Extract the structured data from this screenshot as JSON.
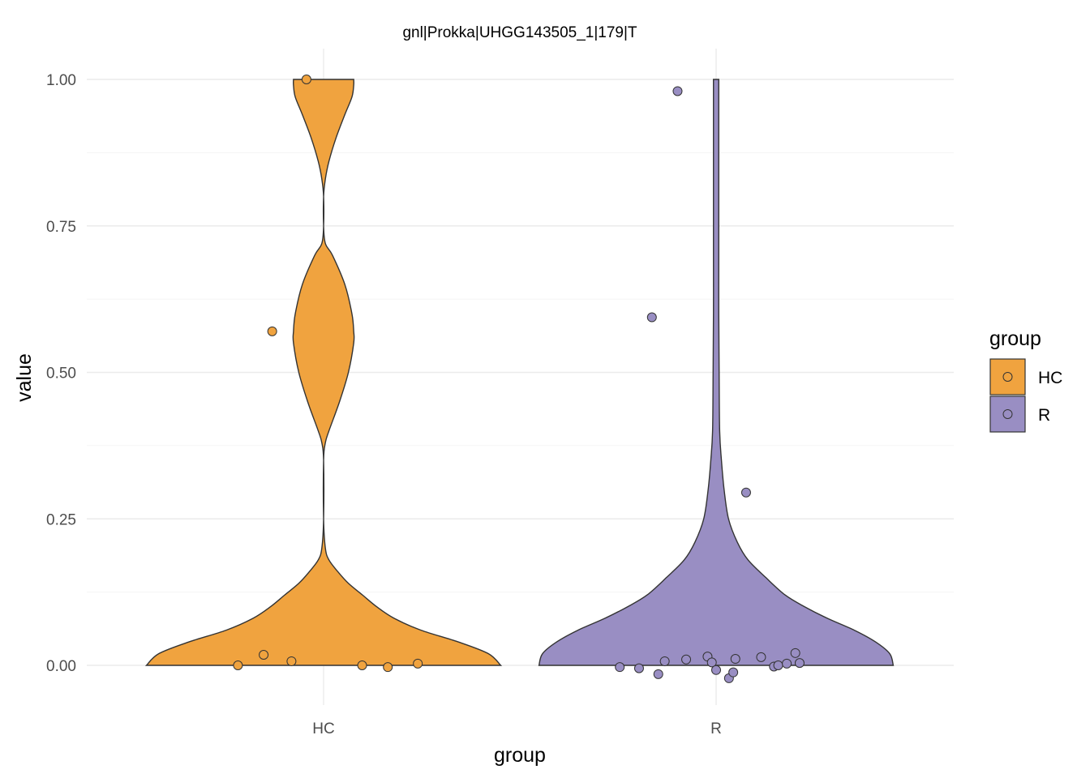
{
  "chart_data": {
    "type": "violin",
    "title": "gnl|Prokka|UHGG143505_1|179|T",
    "xlabel": "group",
    "ylabel": "value",
    "categories": [
      "HC",
      "R"
    ],
    "ylim": [
      -0.07,
      1.05
    ],
    "yticks": [
      0.0,
      0.25,
      0.5,
      0.75,
      1.0
    ],
    "ytick_labels": [
      "0.00",
      "0.25",
      "0.50",
      "0.75",
      "1.00"
    ],
    "grid": true,
    "legend": {
      "title": "group",
      "placement": "right",
      "entries": [
        {
          "label": "HC",
          "color": "#F0A33F"
        },
        {
          "label": "R",
          "color": "#998EC3"
        }
      ]
    },
    "series": [
      {
        "name": "HC",
        "color": "#F0A33F",
        "violin_halfwidth": [
          [
            0.0,
            1.0
          ],
          [
            0.02,
            0.93
          ],
          [
            0.04,
            0.76
          ],
          [
            0.06,
            0.55
          ],
          [
            0.08,
            0.4
          ],
          [
            0.1,
            0.3
          ],
          [
            0.12,
            0.22
          ],
          [
            0.14,
            0.14
          ],
          [
            0.16,
            0.08
          ],
          [
            0.18,
            0.03
          ],
          [
            0.2,
            0.01
          ],
          [
            0.25,
            0.0
          ],
          [
            0.35,
            0.0
          ],
          [
            0.38,
            0.01
          ],
          [
            0.4,
            0.03
          ],
          [
            0.45,
            0.09
          ],
          [
            0.5,
            0.14
          ],
          [
            0.55,
            0.17
          ],
          [
            0.57,
            0.17
          ],
          [
            0.6,
            0.16
          ],
          [
            0.65,
            0.12
          ],
          [
            0.7,
            0.05
          ],
          [
            0.72,
            0.01
          ],
          [
            0.75,
            0.0
          ],
          [
            0.8,
            0.0
          ],
          [
            0.83,
            0.01
          ],
          [
            0.86,
            0.03
          ],
          [
            0.9,
            0.07
          ],
          [
            0.94,
            0.12
          ],
          [
            0.97,
            0.16
          ],
          [
            0.99,
            0.17
          ],
          [
            1.0,
            0.17
          ]
        ],
        "points": [
          {
            "x": -0.4,
            "y": 0.0
          },
          {
            "x": -0.28,
            "y": 0.018
          },
          {
            "x": -0.15,
            "y": 0.007
          },
          {
            "x": 0.18,
            "y": 0.0
          },
          {
            "x": 0.3,
            "y": -0.003
          },
          {
            "x": 0.44,
            "y": 0.003
          },
          {
            "x": -0.24,
            "y": 0.57
          },
          {
            "x": -0.08,
            "y": 1.0
          }
        ]
      },
      {
        "name": "R",
        "color": "#998EC3",
        "violin_halfwidth": [
          [
            0.0,
            1.0
          ],
          [
            0.02,
            0.98
          ],
          [
            0.04,
            0.9
          ],
          [
            0.06,
            0.78
          ],
          [
            0.08,
            0.63
          ],
          [
            0.1,
            0.5
          ],
          [
            0.12,
            0.39
          ],
          [
            0.15,
            0.28
          ],
          [
            0.18,
            0.18
          ],
          [
            0.21,
            0.12
          ],
          [
            0.25,
            0.07
          ],
          [
            0.3,
            0.045
          ],
          [
            0.35,
            0.03
          ],
          [
            0.4,
            0.02
          ],
          [
            0.5,
            0.017
          ],
          [
            0.6,
            0.015
          ],
          [
            0.7,
            0.015
          ],
          [
            0.8,
            0.015
          ],
          [
            0.9,
            0.015
          ],
          [
            1.0,
            0.015
          ]
        ],
        "points": [
          {
            "x": -0.45,
            "y": -0.003
          },
          {
            "x": -0.36,
            "y": -0.005
          },
          {
            "x": -0.27,
            "y": -0.015
          },
          {
            "x": -0.24,
            "y": 0.007
          },
          {
            "x": -0.14,
            "y": 0.01
          },
          {
            "x": -0.04,
            "y": 0.015
          },
          {
            "x": -0.02,
            "y": 0.005
          },
          {
            "x": 0.0,
            "y": -0.008
          },
          {
            "x": 0.06,
            "y": -0.022
          },
          {
            "x": 0.08,
            "y": -0.012
          },
          {
            "x": 0.09,
            "y": 0.011
          },
          {
            "x": 0.21,
            "y": 0.014
          },
          {
            "x": 0.27,
            "y": -0.002
          },
          {
            "x": 0.29,
            "y": 0.0
          },
          {
            "x": 0.33,
            "y": 0.003
          },
          {
            "x": 0.37,
            "y": 0.021
          },
          {
            "x": 0.39,
            "y": 0.004
          },
          {
            "x": 0.14,
            "y": 0.295
          },
          {
            "x": -0.3,
            "y": 0.594
          },
          {
            "x": -0.18,
            "y": 0.98
          }
        ]
      }
    ]
  }
}
